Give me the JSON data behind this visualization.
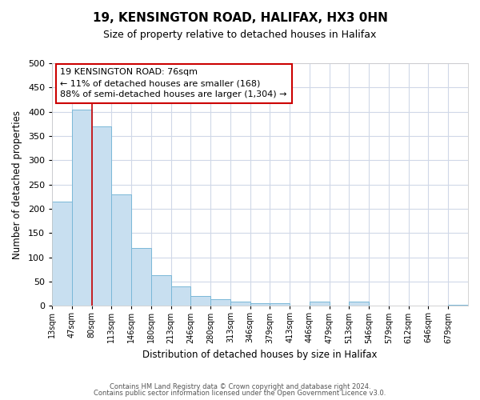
{
  "title": "19, KENSINGTON ROAD, HALIFAX, HX3 0HN",
  "subtitle": "Size of property relative to detached houses in Halifax",
  "xlabel": "Distribution of detached houses by size in Halifax",
  "ylabel": "Number of detached properties",
  "bar_color": "#c8dff0",
  "bar_edge_color": "#7ab8d8",
  "grid_color": "#d0d8e8",
  "bin_labels": [
    "13sqm",
    "47sqm",
    "80sqm",
    "113sqm",
    "146sqm",
    "180sqm",
    "213sqm",
    "246sqm",
    "280sqm",
    "313sqm",
    "346sqm",
    "379sqm",
    "413sqm",
    "446sqm",
    "479sqm",
    "513sqm",
    "546sqm",
    "579sqm",
    "612sqm",
    "646sqm",
    "679sqm"
  ],
  "bar_heights": [
    215,
    405,
    370,
    230,
    120,
    63,
    40,
    20,
    13,
    8,
    5,
    5,
    0,
    8,
    0,
    8,
    0,
    0,
    0,
    0,
    2
  ],
  "ylim": [
    0,
    500
  ],
  "yticks": [
    0,
    50,
    100,
    150,
    200,
    250,
    300,
    350,
    400,
    450,
    500
  ],
  "property_line_x": 2,
  "property_line_color": "#cc0000",
  "annotation_title": "19 KENSINGTON ROAD: 76sqm",
  "annotation_line1": "← 11% of detached houses are smaller (168)",
  "annotation_line2": "88% of semi-detached houses are larger (1,304) →",
  "annotation_box_color": "#ffffff",
  "annotation_box_edge": "#cc0000",
  "footer_line1": "Contains HM Land Registry data © Crown copyright and database right 2024.",
  "footer_line2": "Contains public sector information licensed under the Open Government Licence v3.0."
}
